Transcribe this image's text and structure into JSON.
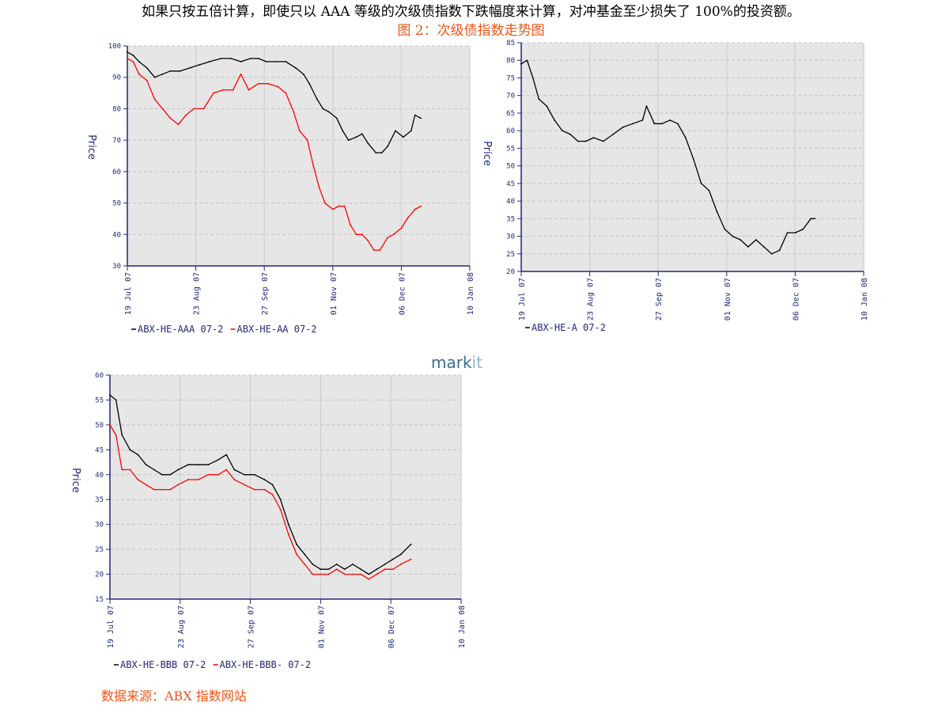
{
  "document": {
    "intro_line": "如果只按五倍计算，即使只以 AAA 等级的次级债指数下跌幅度来计算，对冲基金至少损失了 100%的投资额。",
    "figure_caption": "图 2：次级债指数走势图",
    "source_note": "数据来源：ABX 指数网站",
    "logo_text": "markit"
  },
  "colors": {
    "axis": "#202a7a",
    "plot_bg": "#e6e6e6",
    "grid": "#c4c4c4",
    "series_black": "#000000",
    "series_red": "#ff0000",
    "accent_text": "#e8561a"
  },
  "chart_data": [
    {
      "id": "aaa_aa",
      "type": "line",
      "title": "",
      "xlabel": "",
      "ylabel": "Price",
      "xlim": [
        "2007-07-19",
        "2008-01-10"
      ],
      "ylim": [
        30,
        100
      ],
      "yticks": [
        "100",
        "90",
        "80",
        "70",
        "60",
        "50",
        "40",
        "30"
      ],
      "xticks": [
        "19 Jul 07",
        "23 Aug 07",
        "27 Sep 07",
        "01 Nov 07",
        "06 Dec 07",
        "10 Jan 08"
      ],
      "grid": true,
      "legend_position": "bottom-left",
      "series": [
        {
          "name": "ABX-HE-AAA 07-2",
          "color": "#000000",
          "x": [
            "2007-07-19",
            "2007-07-22",
            "2007-07-25",
            "2007-07-29",
            "2007-08-02",
            "2007-08-06",
            "2007-08-10",
            "2007-08-15",
            "2007-08-20",
            "2007-08-25",
            "2007-08-30",
            "2007-09-05",
            "2007-09-10",
            "2007-09-15",
            "2007-09-20",
            "2007-09-24",
            "2007-09-28",
            "2007-10-03",
            "2007-10-08",
            "2007-10-13",
            "2007-10-17",
            "2007-10-20",
            "2007-10-24",
            "2007-10-27",
            "2007-10-30",
            "2007-11-03",
            "2007-11-06",
            "2007-11-09",
            "2007-11-13",
            "2007-11-16",
            "2007-11-19",
            "2007-11-23",
            "2007-11-26",
            "2007-11-29",
            "2007-12-03",
            "2007-12-07",
            "2007-12-11",
            "2007-12-13",
            "2007-12-16"
          ],
          "y": [
            98,
            97,
            95,
            93,
            90,
            91,
            92,
            92,
            93,
            94,
            95,
            96,
            96,
            95,
            96,
            96,
            95,
            95,
            95,
            93,
            91,
            88,
            83,
            80,
            79,
            77,
            73,
            70,
            71,
            72,
            69,
            66,
            66,
            68,
            73,
            71,
            73,
            78,
            77
          ]
        },
        {
          "name": "ABX-HE-AA 07-2",
          "color": "#ff0000",
          "x": [
            "2007-07-19",
            "2007-07-22",
            "2007-07-25",
            "2007-07-29",
            "2007-08-02",
            "2007-08-06",
            "2007-08-10",
            "2007-08-14",
            "2007-08-18",
            "2007-08-22",
            "2007-08-27",
            "2007-09-01",
            "2007-09-06",
            "2007-09-11",
            "2007-09-15",
            "2007-09-19",
            "2007-09-24",
            "2007-09-29",
            "2007-10-04",
            "2007-10-08",
            "2007-10-12",
            "2007-10-15",
            "2007-10-19",
            "2007-10-22",
            "2007-10-25",
            "2007-10-28",
            "2007-11-01",
            "2007-11-04",
            "2007-11-07",
            "2007-11-10",
            "2007-11-13",
            "2007-11-16",
            "2007-11-19",
            "2007-11-22",
            "2007-11-25",
            "2007-11-29",
            "2007-12-02",
            "2007-12-06",
            "2007-12-09",
            "2007-12-13",
            "2007-12-16"
          ],
          "y": [
            96,
            95,
            91,
            89,
            83,
            80,
            77,
            75,
            78,
            80,
            80,
            85,
            86,
            86,
            91,
            86,
            88,
            88,
            87,
            85,
            79,
            73,
            70,
            62,
            55,
            50,
            48,
            49,
            49,
            43,
            40,
            40,
            38,
            35,
            35,
            39,
            40,
            42,
            45,
            48,
            49
          ]
        }
      ]
    },
    {
      "id": "a",
      "type": "line",
      "title": "",
      "xlabel": "",
      "ylabel": "Price",
      "xlim": [
        "2007-07-19",
        "2008-01-10"
      ],
      "ylim": [
        20,
        85
      ],
      "yticks": [
        "85",
        "80",
        "75",
        "70",
        "65",
        "60",
        "55",
        "50",
        "45",
        "40",
        "35",
        "30",
        "25",
        "20"
      ],
      "xticks": [
        "19 Jul 07",
        "23 Aug 07",
        "27 Sep 07",
        "01 Nov 07",
        "06 Dec 07",
        "10 Jan 08"
      ],
      "grid": true,
      "legend_position": "bottom-left",
      "series": [
        {
          "name": "ABX-HE-A 07-2",
          "color": "#000000",
          "x": [
            "2007-07-19",
            "2007-07-22",
            "2007-07-25",
            "2007-07-28",
            "2007-08-01",
            "2007-08-05",
            "2007-08-09",
            "2007-08-13",
            "2007-08-17",
            "2007-08-21",
            "2007-08-25",
            "2007-08-30",
            "2007-09-04",
            "2007-09-09",
            "2007-09-14",
            "2007-09-19",
            "2007-09-21",
            "2007-09-25",
            "2007-09-29",
            "2007-10-03",
            "2007-10-07",
            "2007-10-11",
            "2007-10-15",
            "2007-10-19",
            "2007-10-23",
            "2007-10-27",
            "2007-10-31",
            "2007-11-04",
            "2007-11-08",
            "2007-11-12",
            "2007-11-16",
            "2007-11-20",
            "2007-11-24",
            "2007-11-28",
            "2007-12-02",
            "2007-12-06",
            "2007-12-10",
            "2007-12-14",
            "2007-12-16"
          ],
          "y": [
            79,
            80,
            75,
            69,
            67,
            63,
            60,
            59,
            57,
            57,
            58,
            57,
            59,
            61,
            62,
            63,
            67,
            62,
            62,
            63,
            62,
            58,
            52,
            45,
            43,
            37,
            32,
            30,
            29,
            27,
            29,
            27,
            25,
            26,
            31,
            31,
            32,
            35,
            35
          ]
        }
      ]
    },
    {
      "id": "bbb",
      "type": "line",
      "title": "",
      "xlabel": "",
      "ylabel": "Price",
      "xlim": [
        "2007-07-19",
        "2008-01-10"
      ],
      "ylim": [
        15,
        60
      ],
      "yticks": [
        "60",
        "55",
        "50",
        "45",
        "40",
        "35",
        "30",
        "25",
        "20",
        "15"
      ],
      "xticks": [
        "19 Jul 07",
        "23 Aug 07",
        "27 Sep 07",
        "01 Nov 07",
        "06 Dec 07",
        "10 Jan 08"
      ],
      "grid": true,
      "legend_position": "bottom-left",
      "series": [
        {
          "name": "ABX-HE-BBB 07-2",
          "color": "#000000",
          "x": [
            "2007-07-19",
            "2007-07-22",
            "2007-07-25",
            "2007-07-29",
            "2007-08-02",
            "2007-08-06",
            "2007-08-10",
            "2007-08-14",
            "2007-08-18",
            "2007-08-22",
            "2007-08-27",
            "2007-09-01",
            "2007-09-06",
            "2007-09-11",
            "2007-09-15",
            "2007-09-19",
            "2007-09-24",
            "2007-09-29",
            "2007-10-04",
            "2007-10-08",
            "2007-10-12",
            "2007-10-16",
            "2007-10-20",
            "2007-10-24",
            "2007-10-28",
            "2007-11-01",
            "2007-11-05",
            "2007-11-09",
            "2007-11-13",
            "2007-11-17",
            "2007-11-21",
            "2007-11-25",
            "2007-11-29",
            "2007-12-03",
            "2007-12-07",
            "2007-12-11",
            "2007-12-16"
          ],
          "y": [
            56,
            55,
            48,
            45,
            44,
            42,
            41,
            40,
            40,
            41,
            42,
            42,
            42,
            43,
            44,
            41,
            40,
            40,
            39,
            38,
            35,
            30,
            26,
            24,
            22,
            21,
            21,
            22,
            21,
            22,
            21,
            20,
            21,
            22,
            23,
            24,
            26
          ]
        },
        {
          "name": "ABX-HE-BBB- 07-2",
          "color": "#ff0000",
          "x": [
            "2007-07-19",
            "2007-07-22",
            "2007-07-25",
            "2007-07-29",
            "2007-08-02",
            "2007-08-06",
            "2007-08-10",
            "2007-08-14",
            "2007-08-18",
            "2007-08-22",
            "2007-08-27",
            "2007-09-01",
            "2007-09-06",
            "2007-09-11",
            "2007-09-15",
            "2007-09-19",
            "2007-09-24",
            "2007-09-29",
            "2007-10-04",
            "2007-10-08",
            "2007-10-12",
            "2007-10-16",
            "2007-10-20",
            "2007-10-24",
            "2007-10-28",
            "2007-11-01",
            "2007-11-05",
            "2007-11-09",
            "2007-11-13",
            "2007-11-17",
            "2007-11-21",
            "2007-11-25",
            "2007-11-29",
            "2007-12-03",
            "2007-12-07",
            "2007-12-11",
            "2007-12-16"
          ],
          "y": [
            50,
            48,
            41,
            41,
            39,
            38,
            37,
            37,
            37,
            38,
            39,
            39,
            40,
            40,
            41,
            39,
            38,
            37,
            37,
            36,
            33,
            28,
            24,
            22,
            20,
            20,
            20,
            21,
            20,
            20,
            20,
            19,
            20,
            21,
            21,
            22,
            23
          ]
        }
      ]
    }
  ]
}
